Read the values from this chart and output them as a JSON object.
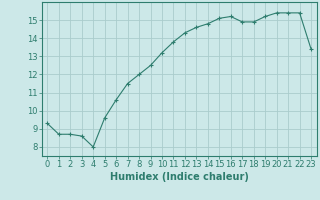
{
  "x": [
    0,
    1,
    2,
    3,
    4,
    5,
    6,
    7,
    8,
    9,
    10,
    11,
    12,
    13,
    14,
    15,
    16,
    17,
    18,
    19,
    20,
    21,
    22,
    23
  ],
  "y": [
    9.3,
    8.7,
    8.7,
    8.6,
    8.0,
    9.6,
    10.6,
    11.5,
    12.0,
    12.5,
    13.2,
    13.8,
    14.3,
    14.6,
    14.8,
    15.1,
    15.2,
    14.9,
    14.9,
    15.2,
    15.4,
    15.4,
    15.4,
    13.4
  ],
  "xlabel": "Humidex (Indice chaleur)",
  "xlim": [
    -0.5,
    23.5
  ],
  "ylim": [
    7.5,
    16.0
  ],
  "yticks": [
    8,
    9,
    10,
    11,
    12,
    13,
    14,
    15
  ],
  "xticks": [
    0,
    1,
    2,
    3,
    4,
    5,
    6,
    7,
    8,
    9,
    10,
    11,
    12,
    13,
    14,
    15,
    16,
    17,
    18,
    19,
    20,
    21,
    22,
    23
  ],
  "line_color": "#2e7d6e",
  "marker": "+",
  "bg_color": "#cce8e8",
  "grid_color": "#aacccc",
  "tick_fontsize": 6,
  "xlabel_fontsize": 7,
  "spine_color": "#2e7d6e"
}
